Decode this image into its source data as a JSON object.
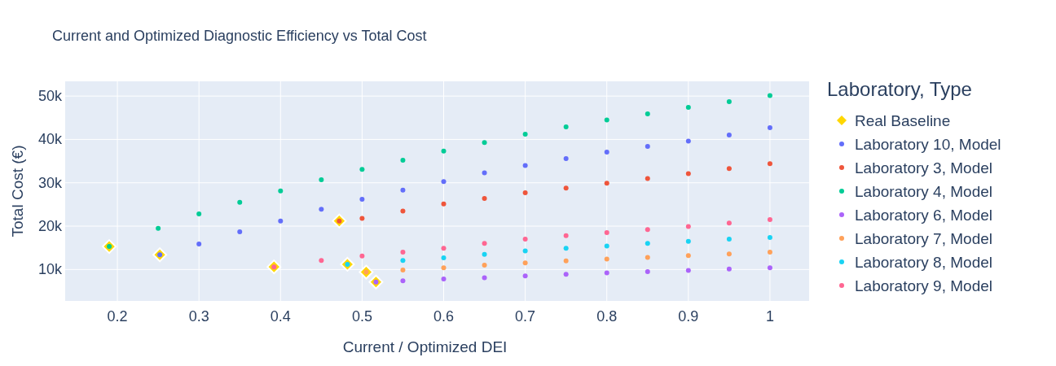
{
  "chart_data": {
    "type": "scatter",
    "title": "Current and Optimized Diagnostic Efficiency vs Total Cost",
    "xlabel": "Current / Optimized DEI",
    "ylabel": "Total Cost (€)",
    "legend_title": "Laboratory, Type",
    "legend": "right",
    "grid": true,
    "marker": "circle",
    "xlim": [
      0.136,
      1.048
    ],
    "xticks": [
      0.2,
      0.3,
      0.4,
      0.5,
      0.6,
      0.7,
      0.8,
      0.9,
      {
        "value": 1,
        "label": "1"
      }
    ],
    "ylim": [
      2750,
      53400
    ],
    "yticks": [
      {
        "value": 10000,
        "label": "10k"
      },
      {
        "value": 20000,
        "label": "20k"
      },
      {
        "value": 30000,
        "label": "30k"
      },
      {
        "value": 40000,
        "label": "40k"
      },
      {
        "value": 50000,
        "label": "50k"
      }
    ],
    "series": [
      {
        "name": "Real Baseline",
        "color": "#ffd700",
        "marker": "diamond",
        "x": [
          0.19,
          0.252,
          0.472,
          0.392,
          0.482,
          0.505,
          0.517
        ],
        "values": [
          15300,
          13400,
          21200,
          10600,
          11200,
          9400,
          7100
        ]
      },
      {
        "name": "Laboratory 10, Model",
        "color": "#636efa",
        "x": [
          0.252,
          0.3,
          0.35,
          0.4,
          0.45,
          0.5,
          0.55,
          0.6,
          0.65,
          0.7,
          0.75,
          0.8,
          0.85,
          0.9,
          0.95,
          1.0
        ],
        "values": [
          13400,
          15900,
          18700,
          21200,
          23900,
          26200,
          28300,
          30300,
          32300,
          34000,
          35600,
          37100,
          38400,
          39600,
          41000,
          42700
        ]
      },
      {
        "name": "Laboratory 3, Model",
        "color": "#ef553b",
        "x": [
          0.472,
          0.5,
          0.55,
          0.6,
          0.65,
          0.7,
          0.75,
          0.8,
          0.85,
          0.9,
          0.95,
          1.0
        ],
        "values": [
          21200,
          21800,
          23500,
          25100,
          26400,
          27700,
          28800,
          29900,
          31000,
          32100,
          33300,
          34400
        ]
      },
      {
        "name": "Laboratory 4, Model",
        "color": "#00cc96",
        "x": [
          0.19,
          0.25,
          0.3,
          0.35,
          0.4,
          0.45,
          0.5,
          0.55,
          0.6,
          0.65,
          0.7,
          0.75,
          0.8,
          0.85,
          0.9,
          0.95,
          1.0
        ],
        "values": [
          15300,
          19500,
          22800,
          25500,
          28100,
          30700,
          33100,
          35200,
          37300,
          39300,
          41200,
          42900,
          44500,
          45900,
          47400,
          48700,
          50100
        ]
      },
      {
        "name": "Laboratory 6, Model",
        "color": "#ab63fa",
        "x": [
          0.517,
          0.55,
          0.6,
          0.65,
          0.7,
          0.75,
          0.8,
          0.85,
          0.9,
          0.95,
          1.0
        ],
        "values": [
          7100,
          7400,
          7800,
          8100,
          8500,
          8900,
          9200,
          9500,
          9800,
          10100,
          10400
        ]
      },
      {
        "name": "Laboratory 7, Model",
        "color": "#ffa15a",
        "x": [
          0.505,
          0.55,
          0.6,
          0.65,
          0.7,
          0.75,
          0.8,
          0.85,
          0.9,
          0.95,
          1.0
        ],
        "values": [
          9400,
          9900,
          10400,
          11000,
          11500,
          12000,
          12400,
          12800,
          13200,
          13600,
          14000
        ]
      },
      {
        "name": "Laboratory 8, Model",
        "color": "#19d3f3",
        "x": [
          0.482,
          0.55,
          0.6,
          0.65,
          0.7,
          0.75,
          0.8,
          0.85,
          0.9,
          0.95,
          1.0
        ],
        "values": [
          11200,
          12100,
          12700,
          13500,
          14300,
          14900,
          15400,
          16000,
          16500,
          17000,
          17400
        ]
      },
      {
        "name": "Laboratory 9, Model",
        "color": "#ff6692",
        "x": [
          0.392,
          0.45,
          0.5,
          0.55,
          0.6,
          0.65,
          0.7,
          0.75,
          0.8,
          0.85,
          0.9,
          0.95,
          1.0
        ],
        "values": [
          10600,
          12100,
          13100,
          14000,
          14900,
          16000,
          17000,
          17800,
          18500,
          19200,
          19900,
          20700,
          21500
        ]
      }
    ]
  }
}
